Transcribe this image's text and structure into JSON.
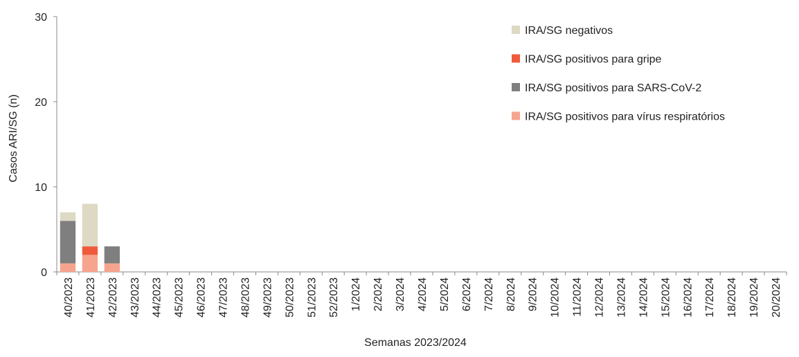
{
  "chart_data": {
    "type": "stacked_bar",
    "y_label": "Casos ARI/SG (n)",
    "x_label": "Semanas 2023/2024",
    "categories": [
      "40/2023",
      "41/2023",
      "42/2023",
      "43/2023",
      "44/2023",
      "45/2023",
      "46/2023",
      "47/2023",
      "48/2023",
      "49/2023",
      "50/2023",
      "51/2023",
      "52/2023",
      "1/2024",
      "2/2024",
      "3/2024",
      "4/2024",
      "5/2024",
      "6/2024",
      "7/2024",
      "8/2024",
      "9/2024",
      "10/2024",
      "11/2024",
      "12/2024",
      "13/2024",
      "14/2024",
      "15/2024",
      "16/2024",
      "17/2024",
      "18/2024",
      "19/2024",
      "20/2024"
    ],
    "series": [
      {
        "name": "IRA/SG negativos",
        "color": "#ddd9c3",
        "values": [
          1,
          5,
          0,
          0,
          0,
          0,
          0,
          0,
          0,
          0,
          0,
          0,
          0,
          0,
          0,
          0,
          0,
          0,
          0,
          0,
          0,
          0,
          0,
          0,
          0,
          0,
          0,
          0,
          0,
          0,
          0,
          0,
          0
        ]
      },
      {
        "name": "IRA/SG positivos para gripe",
        "color": "#f05a3c",
        "values": [
          0,
          1,
          0,
          0,
          0,
          0,
          0,
          0,
          0,
          0,
          0,
          0,
          0,
          0,
          0,
          0,
          0,
          0,
          0,
          0,
          0,
          0,
          0,
          0,
          0,
          0,
          0,
          0,
          0,
          0,
          0,
          0,
          0
        ]
      },
      {
        "name": "IRA/SG positivos para SARS-CoV-2",
        "color": "#7f7f7f",
        "values": [
          5,
          0,
          2,
          0,
          0,
          0,
          0,
          0,
          0,
          0,
          0,
          0,
          0,
          0,
          0,
          0,
          0,
          0,
          0,
          0,
          0,
          0,
          0,
          0,
          0,
          0,
          0,
          0,
          0,
          0,
          0,
          0,
          0
        ]
      },
      {
        "name": "IRA/SG positivos para vírus respiratórios",
        "color": "#f7a48e",
        "values": [
          1,
          2,
          1,
          0,
          0,
          0,
          0,
          0,
          0,
          0,
          0,
          0,
          0,
          0,
          0,
          0,
          0,
          0,
          0,
          0,
          0,
          0,
          0,
          0,
          0,
          0,
          0,
          0,
          0,
          0,
          0,
          0,
          0
        ]
      }
    ],
    "ylim": [
      0,
      30
    ],
    "yticks": [
      0,
      10,
      20,
      30
    ],
    "grid": false,
    "legend": "top-right"
  }
}
